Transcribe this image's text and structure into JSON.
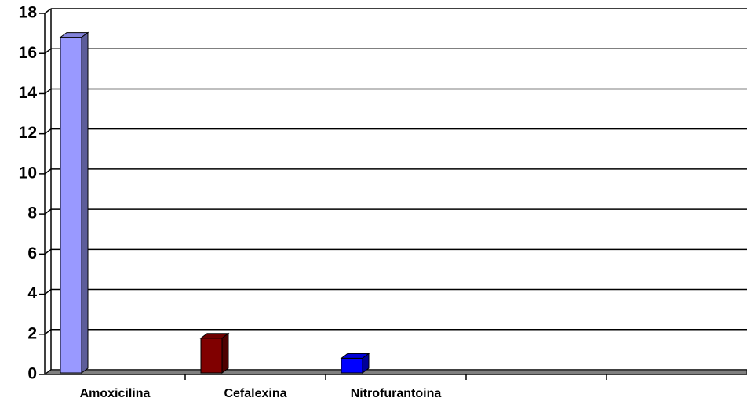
{
  "chart_data": {
    "type": "bar3d",
    "categories": [
      "Amoxicilina",
      "Cefalexina",
      "Nitrofurantoina",
      null,
      null
    ],
    "values": [
      17,
      2,
      1,
      null,
      null
    ],
    "colors": [
      "#9999ff",
      "#800000",
      "#0000ff",
      null,
      null
    ],
    "ylim": [
      0,
      18
    ],
    "yticks": [
      0,
      2,
      4,
      6,
      8,
      10,
      12,
      14,
      16,
      18
    ],
    "grid": true
  }
}
